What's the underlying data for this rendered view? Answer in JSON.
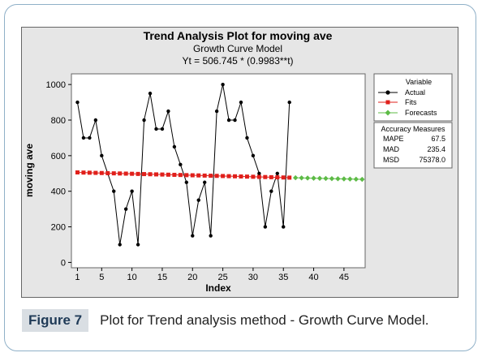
{
  "figure_caption": {
    "label": "Figure 7",
    "text": "Plot for Trend analysis method - Growth Curve Model."
  },
  "colors": {
    "actual": "#000000",
    "fits": "#e0201b",
    "forecasts": "#5dbb46",
    "panel": "#e6e6e6",
    "plot_bg": "#ffffff"
  },
  "chart_data": {
    "type": "line",
    "title": "Trend Analysis Plot for moving ave",
    "subtitle": "Growth Curve Model",
    "equation": "Yt = 506.745 * (0.9983**t)",
    "xlabel": "Index",
    "ylabel": "moving ave",
    "xlim": [
      0,
      48.5
    ],
    "ylim": [
      -30,
      1060
    ],
    "xticks": [
      1,
      5,
      10,
      15,
      20,
      25,
      30,
      35,
      40,
      45
    ],
    "yticks": [
      0,
      200,
      400,
      600,
      800,
      1000
    ],
    "grid": false,
    "legend_position": "right",
    "legend": {
      "title": "Variable",
      "entries": [
        "Actual",
        "Fits",
        "Forecasts"
      ]
    },
    "accuracy": {
      "title": "Accuracy Measures",
      "rows": [
        {
          "name": "MAPE",
          "value": "67.5"
        },
        {
          "name": "MAD",
          "value": "235.4"
        },
        {
          "name": "MSD",
          "value": "75378.0"
        }
      ]
    },
    "series": [
      {
        "name": "Actual",
        "marker": "circle",
        "x": [
          1,
          2,
          3,
          4,
          5,
          6,
          7,
          8,
          9,
          10,
          11,
          12,
          13,
          14,
          15,
          16,
          17,
          18,
          19,
          20,
          21,
          22,
          23,
          24,
          25,
          26,
          27,
          28,
          29,
          30,
          31,
          32,
          33,
          34,
          35,
          36
        ],
        "values": [
          900,
          700,
          700,
          800,
          600,
          500,
          400,
          100,
          300,
          400,
          100,
          800,
          950,
          750,
          750,
          850,
          650,
          550,
          450,
          150,
          350,
          450,
          150,
          850,
          1000,
          800,
          800,
          900,
          700,
          600,
          500,
          200,
          400,
          500,
          200,
          900
        ]
      },
      {
        "name": "Fits",
        "marker": "square",
        "x": [
          1,
          2,
          3,
          4,
          5,
          6,
          7,
          8,
          9,
          10,
          11,
          12,
          13,
          14,
          15,
          16,
          17,
          18,
          19,
          20,
          21,
          22,
          23,
          24,
          25,
          26,
          27,
          28,
          29,
          30,
          31,
          32,
          33,
          34,
          35,
          36
        ],
        "values": [
          505.9,
          505.0,
          504.2,
          503.3,
          502.5,
          501.6,
          500.7,
          499.9,
          499.1,
          498.2,
          497.4,
          496.5,
          495.7,
          494.8,
          494.0,
          493.1,
          492.3,
          491.5,
          490.6,
          489.8,
          489.0,
          488.1,
          487.3,
          486.5,
          485.6,
          484.8,
          484.0,
          483.1,
          482.3,
          481.5,
          480.7,
          479.9,
          479.0,
          478.2,
          477.4,
          476.6
        ]
      },
      {
        "name": "Forecasts",
        "marker": "diamond",
        "x": [
          37,
          38,
          39,
          40,
          41,
          42,
          43,
          44,
          45,
          46,
          47,
          48
        ],
        "values": [
          475.8,
          475.0,
          474.2,
          473.4,
          472.6,
          471.8,
          471.0,
          470.2,
          469.4,
          468.6,
          467.8,
          467.0
        ]
      }
    ]
  }
}
